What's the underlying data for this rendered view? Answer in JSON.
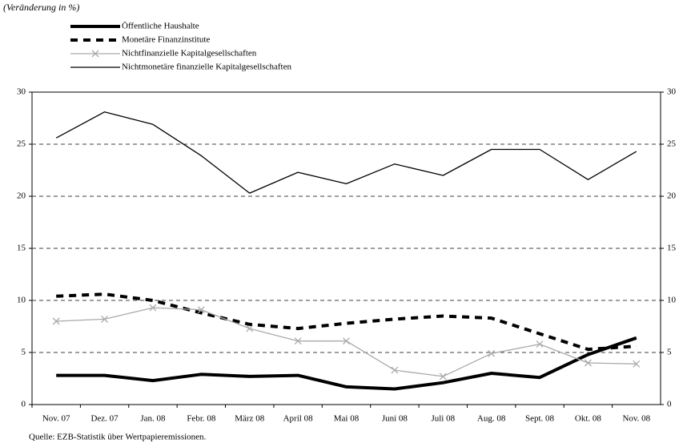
{
  "chart_data": {
    "type": "line",
    "title": "(Veränderung in %)",
    "source": "Quelle: EZB-Statistik über Wertpapieremissionen.",
    "categories": [
      "Nov. 07",
      "Dez. 07",
      "Jan. 08",
      "Febr. 08",
      "März 08",
      "April 08",
      "Mai 08",
      "Juni 08",
      "Juli 08",
      "Aug. 08",
      "Sept. 08",
      "Okt. 08",
      "Nov. 08"
    ],
    "series": [
      {
        "name": "Öffentliche Haushalte",
        "color": "#000000",
        "width": 4,
        "style": "solid",
        "values": [
          2.8,
          2.8,
          2.3,
          2.9,
          2.7,
          2.8,
          1.7,
          1.5,
          2.1,
          3.0,
          2.6,
          4.8,
          6.4
        ]
      },
      {
        "name": "Monetäre Finanzinstitute",
        "color": "#000000",
        "width": 4,
        "style": "dashed",
        "values": [
          10.4,
          10.6,
          10.0,
          8.8,
          7.7,
          7.3,
          7.8,
          8.2,
          8.5,
          8.3,
          6.8,
          5.3,
          5.6
        ]
      },
      {
        "name": "Nichtfinanzielle Kapitalgesellschaften",
        "color": "#aaaaaa",
        "width": 1.3,
        "style": "solid",
        "marker": "x",
        "values": [
          8.0,
          8.2,
          9.3,
          9.1,
          7.3,
          6.1,
          6.1,
          3.3,
          2.7,
          4.9,
          5.8,
          4.0,
          3.9
        ]
      },
      {
        "name": "Nichtmonetäre finanzielle Kapitalgesellschaften",
        "color": "#000000",
        "width": 1.3,
        "style": "solid",
        "values": [
          25.6,
          28.1,
          26.9,
          23.9,
          20.3,
          22.3,
          21.2,
          23.1,
          22.0,
          24.5,
          24.5,
          21.6,
          24.3
        ]
      }
    ],
    "ylim": [
      0,
      30
    ],
    "yticks": [
      0,
      5,
      10,
      15,
      20,
      25,
      30
    ],
    "y2lim": [
      0,
      30
    ],
    "y2ticks": [
      0,
      5,
      10,
      15,
      20,
      25,
      30
    ],
    "grid": true
  }
}
